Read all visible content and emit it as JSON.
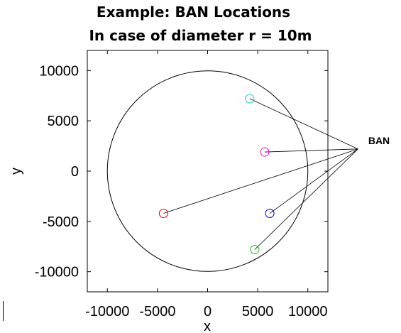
{
  "chart_data": {
    "type": "scatter",
    "title": [
      "Example: BAN   Locations",
      "In case of diameter r = 10m"
    ],
    "xlabel": "x",
    "ylabel": "y",
    "xlim": [
      -12000,
      12000
    ],
    "ylim": [
      -12000,
      12000
    ],
    "xticks": [
      -10000,
      -5000,
      0,
      5000,
      10000
    ],
    "yticks": [
      -10000,
      -5000,
      0,
      5000,
      10000
    ],
    "xtick_labels": [
      "-10000",
      "-5000",
      "0",
      "5000",
      "10000"
    ],
    "ytick_labels": [
      "-10000",
      "-5000",
      "0",
      "5000",
      "10000"
    ],
    "grid": false,
    "boundary_circle": {
      "center": [
        0,
        0
      ],
      "radius": 10000,
      "color": "#000000"
    },
    "ban": {
      "label": "BAN",
      "x": 15000,
      "y": 2200
    },
    "points": [
      {
        "x": 4200,
        "y": 7200,
        "color": "#00d8d8"
      },
      {
        "x": 5700,
        "y": 1900,
        "color": "#e000e0"
      },
      {
        "x": -4400,
        "y": -4200,
        "color": "#e00000"
      },
      {
        "x": 6200,
        "y": -4200,
        "color": "#0000e0"
      },
      {
        "x": 4700,
        "y": -7800,
        "color": "#00d000"
      }
    ]
  }
}
